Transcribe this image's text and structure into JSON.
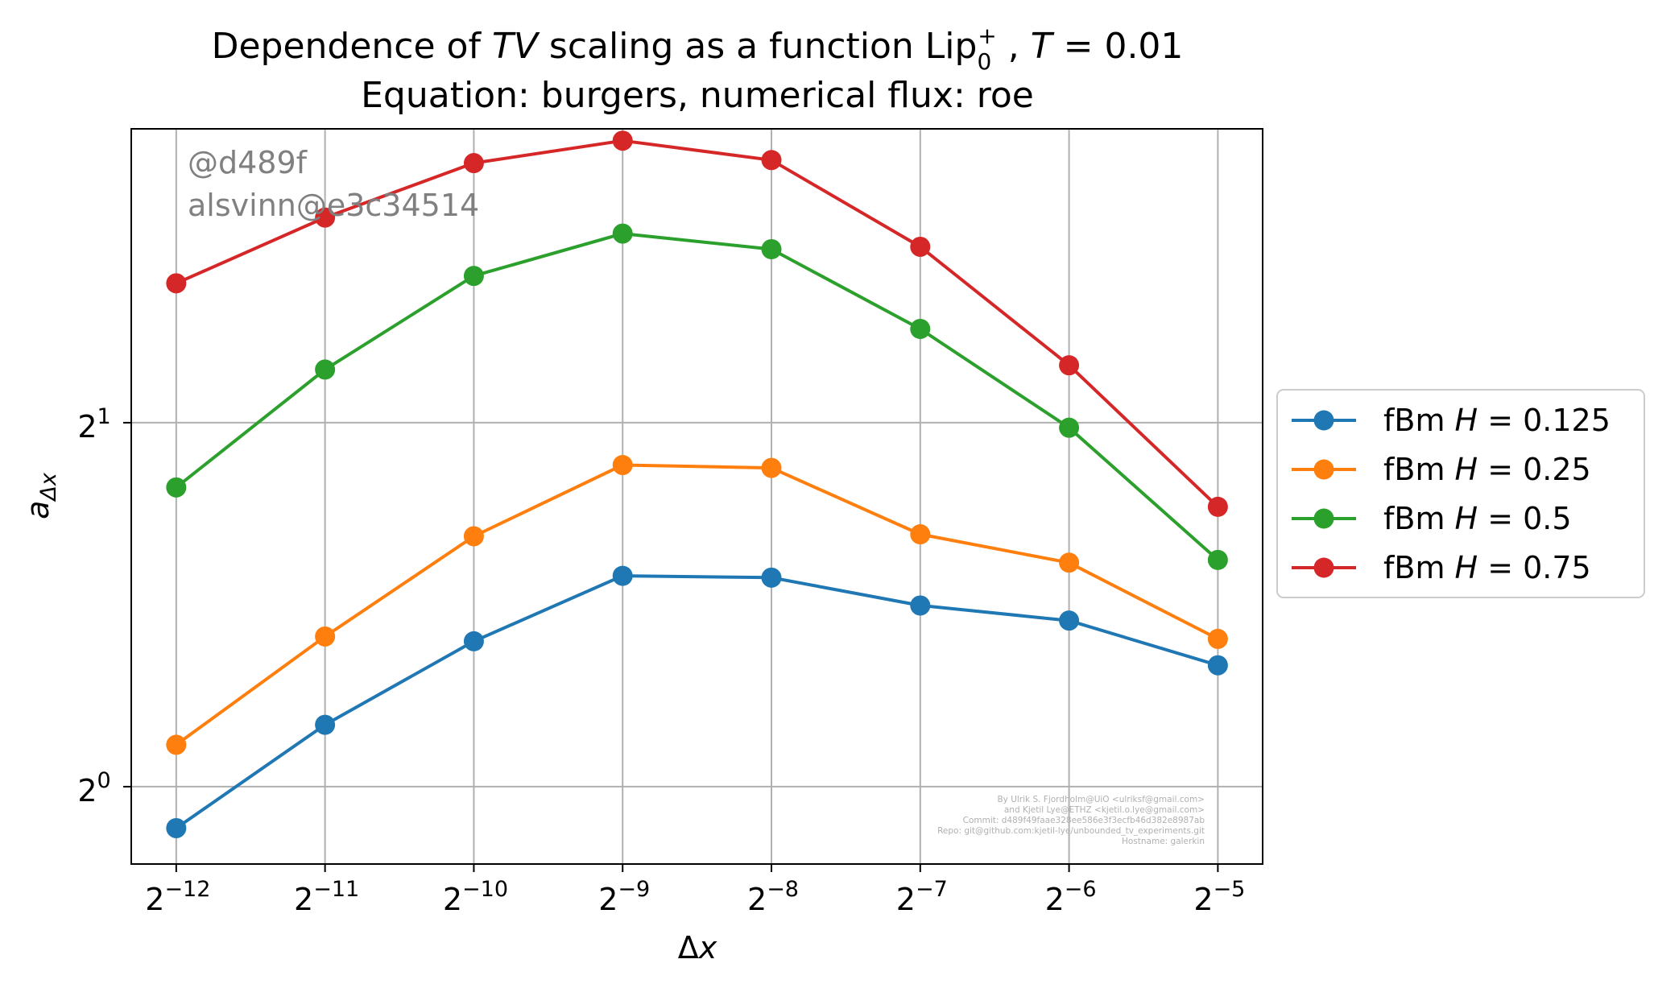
{
  "chart_data": {
    "type": "line",
    "title": "Dependence of TV scaling as a function Lip0+ , T = 0.01",
    "title_parts": {
      "prefix": "Dependence of ",
      "tv": "TV",
      "middle": " scaling as a function Lip",
      "lip_sub": "0",
      "lip_sup": "+",
      "comma": " , ",
      "t_var": "T",
      "t_eq": " = 0.01"
    },
    "subtitle": "Equation: burgers, numerical flux: roe",
    "xlabel": "Δx",
    "xlabel_parts": {
      "delta": "Δ",
      "var": "x"
    },
    "ylabel": "aΔx",
    "ylabel_parts": {
      "var": "a",
      "sub": "Δx"
    },
    "x_scale": "log2",
    "y_scale": "log2",
    "x": [
      0.000244140625,
      0.00048828125,
      0.0009765625,
      0.001953125,
      0.00390625,
      0.0078125,
      0.015625,
      0.03125
    ],
    "x_tick_labels": [
      {
        "base": "2",
        "exp": "−12"
      },
      {
        "base": "2",
        "exp": "−11"
      },
      {
        "base": "2",
        "exp": "−10"
      },
      {
        "base": "2",
        "exp": "−9"
      },
      {
        "base": "2",
        "exp": "−8"
      },
      {
        "base": "2",
        "exp": "−7"
      },
      {
        "base": "2",
        "exp": "−6"
      },
      {
        "base": "2",
        "exp": "−5"
      }
    ],
    "y_ticks": [
      1,
      2
    ],
    "y_tick_labels": [
      {
        "base": "2",
        "exp": "0"
      },
      {
        "base": "2",
        "exp": "1"
      }
    ],
    "xlim": [
      0.000198,
      0.0385
    ],
    "ylim": [
      0.863,
      3.5
    ],
    "grid": true,
    "legend_position": "outside right",
    "series": [
      {
        "name": "fBm H = 0.125",
        "label_prefix": "fBm ",
        "label_var": "H",
        "label_val": " = 0.125",
        "color": "#1f77b4",
        "values": [
          0.924,
          1.125,
          1.319,
          1.494,
          1.489,
          1.412,
          1.372,
          1.26
        ]
      },
      {
        "name": "fBm H = 0.25",
        "label_prefix": "fBm ",
        "label_var": "H",
        "label_val": " = 0.25",
        "color": "#ff7f0e",
        "values": [
          1.083,
          1.331,
          1.611,
          1.845,
          1.835,
          1.617,
          1.532,
          1.325
        ]
      },
      {
        "name": "fBm H = 0.5",
        "label_prefix": "fBm ",
        "label_var": "H",
        "label_val": " = 0.5",
        "color": "#2ca02c",
        "values": [
          1.768,
          2.213,
          2.645,
          2.867,
          2.783,
          2.391,
          1.981,
          1.54
        ]
      },
      {
        "name": "fBm H = 0.75",
        "label_prefix": "fBm ",
        "label_var": "H",
        "label_val": " = 0.75",
        "color": "#d62728",
        "values": [
          2.608,
          2.956,
          3.279,
          3.422,
          3.298,
          2.796,
          2.231,
          1.704
        ]
      }
    ]
  },
  "watermark": {
    "line1": "@d489f",
    "line2": "alsvinn@e3c34514"
  },
  "credits": [
    "By Ulrik S. Fjordholm@UiO <ulriksf@gmail.com>",
    "and Kjetil Lye@ETHZ <kjetil.o.lye@gmail.com>",
    "Commit: d489f49faae328ee586e3f3ecfb46d382e8987ab",
    "Repo: git@github.com:kjetil-lye/unbounded_tv_experiments.git",
    "Hostname: galerkin"
  ]
}
